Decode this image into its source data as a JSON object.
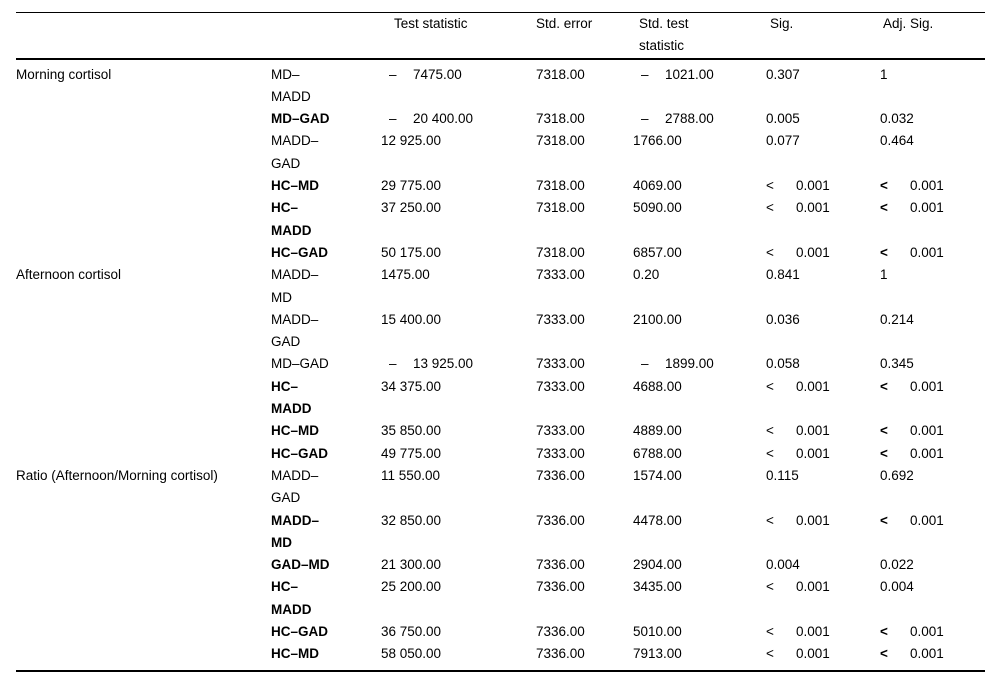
{
  "table": {
    "headers": {
      "row_label": "",
      "comparison": "",
      "test_statistic": "Test statistic",
      "std_error": "Std. error",
      "std_test_statistic": "Std. test statistic",
      "sig": "Sig.",
      "adj_sig": "Adj. Sig."
    },
    "groups": [
      {
        "label": "Morning cortisol",
        "rows": [
          {
            "comparison": "MD–MADD",
            "wrap": true,
            "bold": false,
            "test_statistic": {
              "prefix": "–",
              "value": "7475.00"
            },
            "std_error": {
              "prefix": "",
              "value": "7318.00"
            },
            "std_test_statistic": {
              "prefix": "–",
              "value": "1021.00"
            },
            "sig": {
              "prefix": "",
              "value": "0.307"
            },
            "adj_sig": {
              "prefix": "",
              "value": "1"
            }
          },
          {
            "comparison": "MD–GAD",
            "wrap": false,
            "bold": true,
            "test_statistic": {
              "prefix": "–",
              "value": "20 400.00"
            },
            "std_error": {
              "prefix": "",
              "value": "7318.00"
            },
            "std_test_statistic": {
              "prefix": "–",
              "value": "2788.00"
            },
            "sig": {
              "prefix": "",
              "value": "0.005"
            },
            "adj_sig": {
              "prefix": "",
              "value": "0.032"
            }
          },
          {
            "comparison": "MADD–GAD",
            "wrap": true,
            "bold": false,
            "test_statistic": {
              "prefix": "",
              "value": "12 925.00"
            },
            "std_error": {
              "prefix": "",
              "value": "7318.00"
            },
            "std_test_statistic": {
              "prefix": "",
              "value": "1766.00"
            },
            "sig": {
              "prefix": "",
              "value": "0.077"
            },
            "adj_sig": {
              "prefix": "",
              "value": "0.464"
            }
          },
          {
            "comparison": "HC–MD",
            "wrap": false,
            "bold": true,
            "test_statistic": {
              "prefix": "",
              "value": "29 775.00"
            },
            "std_error": {
              "prefix": "",
              "value": "7318.00"
            },
            "std_test_statistic": {
              "prefix": "",
              "value": "4069.00"
            },
            "sig": {
              "prefix": "<",
              "value": "0.001"
            },
            "adj_sig": {
              "prefix": "<",
              "value": "0.001"
            }
          },
          {
            "comparison": "HC–MADD",
            "wrap": true,
            "bold": true,
            "test_statistic": {
              "prefix": "",
              "value": "37 250.00"
            },
            "std_error": {
              "prefix": "",
              "value": "7318.00"
            },
            "std_test_statistic": {
              "prefix": "",
              "value": "5090.00"
            },
            "sig": {
              "prefix": "<",
              "value": "0.001"
            },
            "adj_sig": {
              "prefix": "<",
              "value": "0.001"
            }
          },
          {
            "comparison": "HC–GAD",
            "wrap": false,
            "bold": true,
            "test_statistic": {
              "prefix": "",
              "value": "50 175.00"
            },
            "std_error": {
              "prefix": "",
              "value": "7318.00"
            },
            "std_test_statistic": {
              "prefix": "",
              "value": "6857.00"
            },
            "sig": {
              "prefix": "<",
              "value": "0.001"
            },
            "adj_sig": {
              "prefix": "<",
              "value": "0.001"
            }
          }
        ]
      },
      {
        "label": "Afternoon cortisol",
        "rows": [
          {
            "comparison": "MADD–MD",
            "wrap": true,
            "bold": false,
            "test_statistic": {
              "prefix": "",
              "value": "1475.00"
            },
            "std_error": {
              "prefix": "",
              "value": "7333.00"
            },
            "std_test_statistic": {
              "prefix": "",
              "value": "0.20"
            },
            "sig": {
              "prefix": "",
              "value": "0.841"
            },
            "adj_sig": {
              "prefix": "",
              "value": "1"
            }
          },
          {
            "comparison": "MADD–GAD",
            "wrap": true,
            "bold": false,
            "test_statistic": {
              "prefix": "",
              "value": "15 400.00"
            },
            "std_error": {
              "prefix": "",
              "value": "7333.00"
            },
            "std_test_statistic": {
              "prefix": "",
              "value": "2100.00"
            },
            "sig": {
              "prefix": "",
              "value": "0.036"
            },
            "adj_sig": {
              "prefix": "",
              "value": "0.214"
            }
          },
          {
            "comparison": "MD–GAD",
            "wrap": false,
            "bold": false,
            "test_statistic": {
              "prefix": "–",
              "value": "13 925.00"
            },
            "std_error": {
              "prefix": "",
              "value": "7333.00"
            },
            "std_test_statistic": {
              "prefix": "–",
              "value": "1899.00"
            },
            "sig": {
              "prefix": "",
              "value": "0.058"
            },
            "adj_sig": {
              "prefix": "",
              "value": "0.345"
            }
          },
          {
            "comparison": "HC–MADD",
            "wrap": true,
            "bold": true,
            "test_statistic": {
              "prefix": "",
              "value": "34 375.00"
            },
            "std_error": {
              "prefix": "",
              "value": "7333.00"
            },
            "std_test_statistic": {
              "prefix": "",
              "value": "4688.00"
            },
            "sig": {
              "prefix": "<",
              "value": "0.001"
            },
            "adj_sig": {
              "prefix": "<",
              "value": "0.001"
            }
          },
          {
            "comparison": "HC–MD",
            "wrap": false,
            "bold": true,
            "test_statistic": {
              "prefix": "",
              "value": "35 850.00"
            },
            "std_error": {
              "prefix": "",
              "value": "7333.00"
            },
            "std_test_statistic": {
              "prefix": "",
              "value": "4889.00"
            },
            "sig": {
              "prefix": "<",
              "value": "0.001"
            },
            "adj_sig": {
              "prefix": "<",
              "value": "0.001"
            }
          },
          {
            "comparison": "HC–GAD",
            "wrap": false,
            "bold": true,
            "test_statistic": {
              "prefix": "",
              "value": "49 775.00"
            },
            "std_error": {
              "prefix": "",
              "value": "7333.00"
            },
            "std_test_statistic": {
              "prefix": "",
              "value": "6788.00"
            },
            "sig": {
              "prefix": "<",
              "value": "0.001"
            },
            "adj_sig": {
              "prefix": "<",
              "value": "0.001"
            }
          }
        ]
      },
      {
        "label": "Ratio (Afternoon/Morning cortisol)",
        "rows": [
          {
            "comparison": "MADD–GAD",
            "wrap": true,
            "bold": false,
            "test_statistic": {
              "prefix": "",
              "value": "11 550.00"
            },
            "std_error": {
              "prefix": "",
              "value": "7336.00"
            },
            "std_test_statistic": {
              "prefix": "",
              "value": "1574.00"
            },
            "sig": {
              "prefix": "",
              "value": "0.115"
            },
            "adj_sig": {
              "prefix": "",
              "value": "0.692"
            }
          },
          {
            "comparison": "MADD–MD",
            "wrap": true,
            "bold": true,
            "test_statistic": {
              "prefix": "",
              "value": "32 850.00"
            },
            "std_error": {
              "prefix": "",
              "value": "7336.00"
            },
            "std_test_statistic": {
              "prefix": "",
              "value": "4478.00"
            },
            "sig": {
              "prefix": "<",
              "value": "0.001"
            },
            "adj_sig": {
              "prefix": "<",
              "value": "0.001"
            }
          },
          {
            "comparison": "GAD–MD",
            "wrap": false,
            "bold": true,
            "test_statistic": {
              "prefix": "",
              "value": "21 300.00"
            },
            "std_error": {
              "prefix": "",
              "value": "7336.00"
            },
            "std_test_statistic": {
              "prefix": "",
              "value": "2904.00"
            },
            "sig": {
              "prefix": "",
              "value": "0.004"
            },
            "adj_sig": {
              "prefix": "",
              "value": "0.022"
            }
          },
          {
            "comparison": "HC–MADD",
            "wrap": true,
            "bold": true,
            "test_statistic": {
              "prefix": "",
              "value": "25 200.00"
            },
            "std_error": {
              "prefix": "",
              "value": "7336.00"
            },
            "std_test_statistic": {
              "prefix": "",
              "value": "3435.00"
            },
            "sig": {
              "prefix": "<",
              "value": "0.001"
            },
            "adj_sig": {
              "prefix": "",
              "value": "0.004"
            }
          },
          {
            "comparison": "HC–GAD",
            "wrap": false,
            "bold": true,
            "test_statistic": {
              "prefix": "",
              "value": "36 750.00"
            },
            "std_error": {
              "prefix": "",
              "value": "7336.00"
            },
            "std_test_statistic": {
              "prefix": "",
              "value": "5010.00"
            },
            "sig": {
              "prefix": "<",
              "value": "0.001"
            },
            "adj_sig": {
              "prefix": "<",
              "value": "0.001"
            }
          },
          {
            "comparison": "HC–MD",
            "wrap": false,
            "bold": true,
            "test_statistic": {
              "prefix": "",
              "value": "58 050.00"
            },
            "std_error": {
              "prefix": "",
              "value": "7336.00"
            },
            "std_test_statistic": {
              "prefix": "",
              "value": "7913.00"
            },
            "sig": {
              "prefix": "<",
              "value": "0.001"
            },
            "adj_sig": {
              "prefix": "<",
              "value": "0.001"
            }
          }
        ]
      }
    ]
  }
}
